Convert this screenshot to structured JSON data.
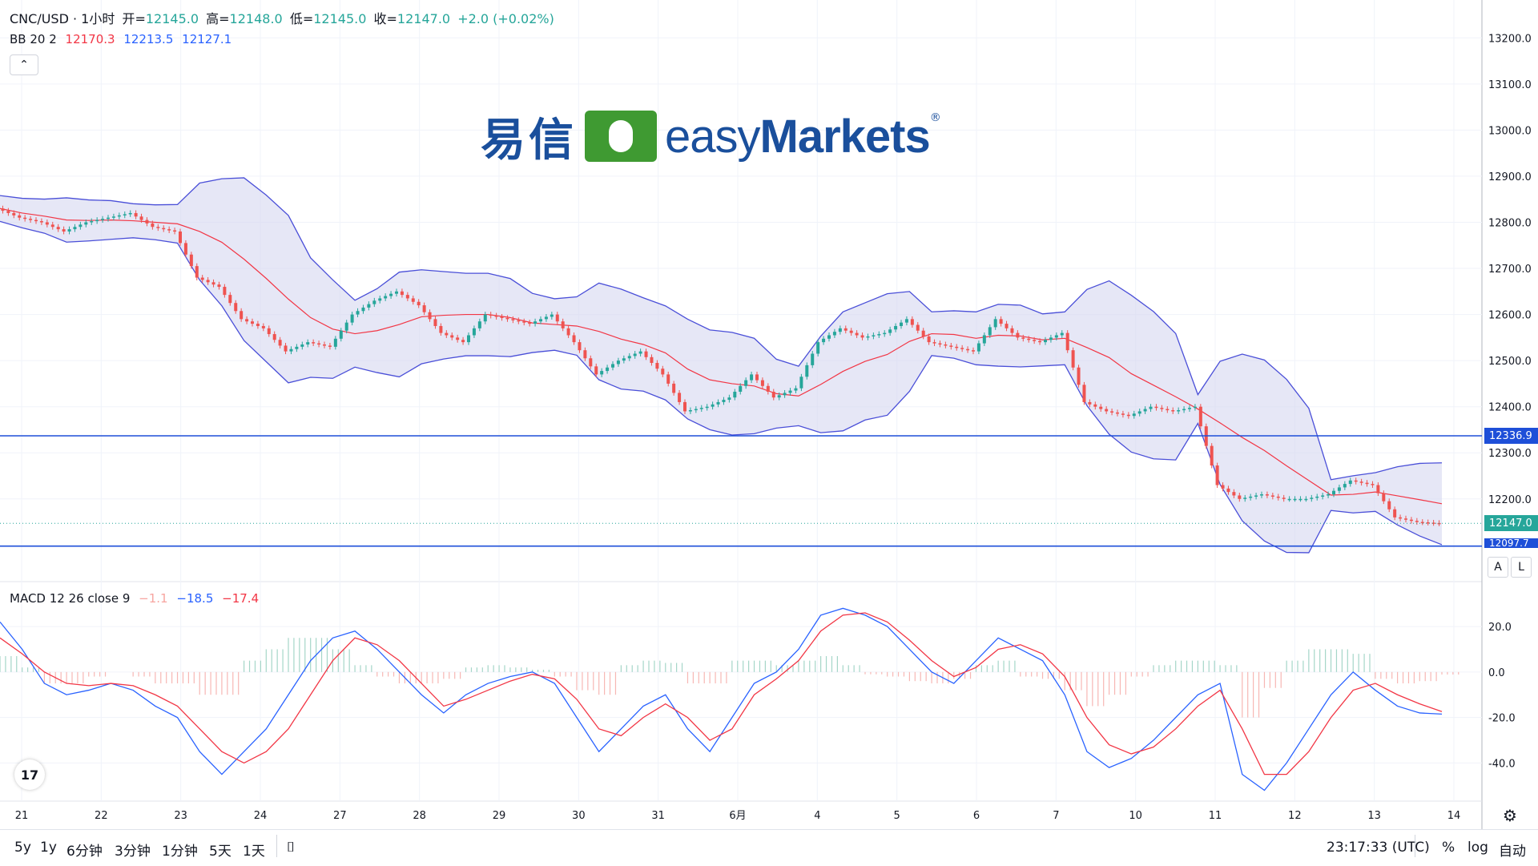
{
  "header": {
    "symbol": "CNC/USD · 1小时",
    "open_label": "开=",
    "open": "12145.0",
    "high_label": "高=",
    "high": "12148.0",
    "low_label": "低=",
    "low": "12145.0",
    "close_label": "收=",
    "close": "12147.0",
    "change": "+2.0 (+0.02%)"
  },
  "bollinger": {
    "label": "BB 20 2",
    "mid": "12170.3",
    "upper": "12213.5",
    "lower": "12127.1"
  },
  "macd": {
    "label": "MACD 12 26 close 9",
    "hist": "−1.1",
    "macd": "−18.5",
    "signal": "−17.4"
  },
  "logo": {
    "cn": "易信",
    "en_light": "easy",
    "en_bold": "Markets",
    "reg": "®"
  },
  "tv_logo": "17",
  "price_tags": {
    "line_upper": "12336.9",
    "current": "12147.0",
    "line_lower": "12097.7"
  },
  "axis_buttons": {
    "auto": "A",
    "log": "L"
  },
  "timeframes": [
    "5y",
    "1y",
    "6分钟",
    "3分钟",
    "1分钟",
    "5天",
    "1天"
  ],
  "date_range_icon": "calendar-range-icon",
  "clock": "23:17:33 (UTC)",
  "bottom_right": {
    "percent": "%",
    "log": "log",
    "auto": "自动"
  },
  "colors": {
    "up": "#26a69a",
    "down": "#ef5350",
    "band": "#4a4fd8",
    "band_fill": "#d6d7f0",
    "mid": "#f23645",
    "hline": "#1e4fd8",
    "macd": "#2962ff",
    "signal": "#f23645"
  },
  "chart_data": [
    {
      "type": "candlestick",
      "title": "CNC/USD · 1小时",
      "x_ticks": [
        "21",
        "22",
        "23",
        "24",
        "27",
        "28",
        "29",
        "30",
        "31",
        "6月",
        "4",
        "5",
        "6",
        "7",
        "10",
        "11",
        "12",
        "13",
        "14"
      ],
      "y_ticks": [
        13200,
        13100,
        13000,
        12900,
        12800,
        12700,
        12600,
        12500,
        12400,
        12300,
        12200
      ],
      "ylim": [
        12045,
        13230
      ],
      "close_series_hourly_approx": [
        12830,
        12810,
        12800,
        12780,
        12800,
        12810,
        12820,
        12790,
        12780,
        12680,
        12660,
        12590,
        12570,
        12520,
        12540,
        12530,
        12600,
        12630,
        12650,
        12620,
        12560,
        12540,
        12600,
        12590,
        12580,
        12600,
        12540,
        12470,
        12500,
        12520,
        12470,
        12390,
        12400,
        12420,
        12470,
        12420,
        12440,
        12540,
        12570,
        12550,
        12560,
        12590,
        12540,
        12530,
        12520,
        12590,
        12550,
        12540,
        12560,
        12410,
        12390,
        12380,
        12400,
        12390,
        12400,
        12230,
        12200,
        12210,
        12200,
        12200,
        12210,
        12240,
        12230,
        12160,
        12150,
        12147
      ],
      "horizontal_lines": [
        12336.9,
        12097.7
      ],
      "current_price": 12147.0,
      "bb": {
        "period": 20,
        "mult": 2,
        "mid": 12170.3,
        "upper": 12213.5,
        "lower": 12127.1
      }
    },
    {
      "type": "line",
      "title": "MACD 12 26 close 9",
      "y_ticks": [
        20.0,
        0.0,
        -20.0,
        -40.0
      ],
      "ylim": [
        -55,
        32
      ],
      "series": [
        {
          "name": "MACD",
          "values": [
            22,
            10,
            -5,
            -10,
            -8,
            -5,
            -8,
            -15,
            -20,
            -35,
            -45,
            -35,
            -25,
            -10,
            5,
            15,
            18,
            10,
            0,
            -10,
            -18,
            -10,
            -5,
            -2,
            0,
            -5,
            -20,
            -35,
            -25,
            -15,
            -10,
            -25,
            -35,
            -20,
            -5,
            0,
            10,
            25,
            28,
            25,
            20,
            10,
            0,
            -5,
            5,
            15,
            10,
            5,
            -10,
            -35,
            -42,
            -38,
            -30,
            -20,
            -10,
            -5,
            -45,
            -52,
            -40,
            -25,
            -10,
            0,
            -8,
            -15,
            -18,
            -18.5
          ]
        },
        {
          "name": "signal",
          "values": [
            15,
            8,
            0,
            -5,
            -6,
            -5,
            -6,
            -10,
            -15,
            -25,
            -35,
            -40,
            -35,
            -25,
            -10,
            5,
            15,
            12,
            5,
            -5,
            -15,
            -12,
            -8,
            -4,
            -1,
            -3,
            -12,
            -25,
            -28,
            -20,
            -14,
            -20,
            -30,
            -25,
            -10,
            -3,
            5,
            18,
            25,
            26,
            22,
            14,
            5,
            -2,
            2,
            10,
            12,
            8,
            -2,
            -20,
            -32,
            -36,
            -33,
            -25,
            -15,
            -8,
            -25,
            -45,
            -45,
            -35,
            -20,
            -8,
            -5,
            -10,
            -14,
            -17.4
          ]
        }
      ],
      "histogram_values": [
        7,
        2,
        -5,
        -5,
        -2,
        0,
        -2,
        -5,
        -5,
        -10,
        -10,
        5,
        10,
        15,
        15,
        10,
        3,
        -2,
        -5,
        -5,
        -3,
        2,
        3,
        2,
        1,
        -2,
        -8,
        -10,
        3,
        5,
        4,
        -5,
        -5,
        5,
        5,
        3,
        5,
        7,
        3,
        -1,
        -2,
        -4,
        -5,
        -3,
        3,
        5,
        -2,
        -3,
        -8,
        -15,
        -10,
        -2,
        3,
        5,
        5,
        3,
        -20,
        -7,
        5,
        10,
        10,
        8,
        -3,
        -5,
        -4,
        -1.1
      ]
    }
  ]
}
